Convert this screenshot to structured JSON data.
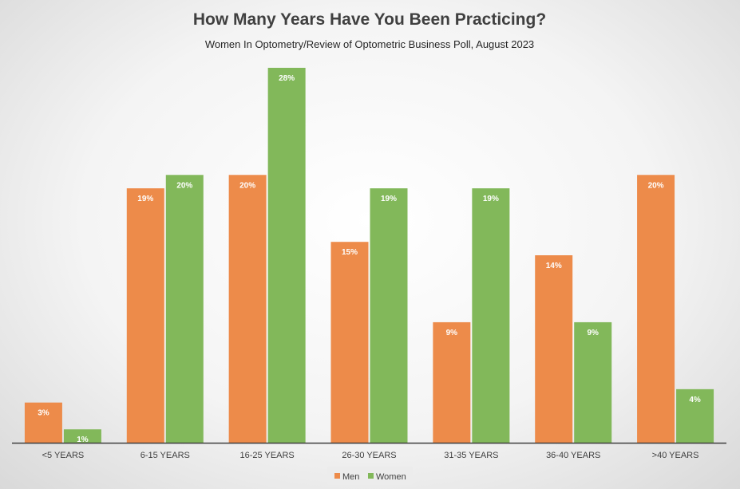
{
  "chart_data": {
    "type": "bar",
    "title": "How Many Years Have You Been Practicing?",
    "subtitle": "Women In Optometry/Review of Optometric Business Poll, August 2023",
    "xlabel": "",
    "ylabel": "",
    "categories": [
      "<5 YEARS",
      "6-15 YEARS",
      "16-25 YEARS",
      "26-30 YEARS",
      "31-35 YEARS",
      "36-40 YEARS",
      ">40 YEARS"
    ],
    "series": [
      {
        "name": "Men",
        "color": "#ED8B4A",
        "values": [
          3,
          19,
          20,
          15,
          9,
          14,
          20
        ],
        "labels": [
          "3%",
          "19%",
          "20%",
          "15%",
          "9%",
          "14%",
          "20%"
        ]
      },
      {
        "name": "Women",
        "color": "#82B85A",
        "values": [
          1,
          20,
          28,
          19,
          19,
          9,
          4
        ],
        "labels": [
          "1%",
          "20%",
          "28%",
          "19%",
          "19%",
          "9%",
          "4%"
        ]
      }
    ],
    "ylim": [
      0,
      28
    ],
    "value_unit": "%",
    "grid": false,
    "legend_position": "bottom"
  }
}
